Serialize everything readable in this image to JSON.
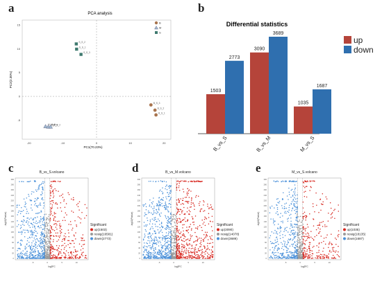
{
  "panels": {
    "a": {
      "letter": "a",
      "chart_data": {
        "type": "scatter",
        "title": "PCA analysis",
        "xlabel": "PC1(70.23%)",
        "ylabel": "PC2(2.30%)",
        "xlim": [
          -22,
          22
        ],
        "ylim": [
          -9,
          16
        ],
        "xticks": [
          "-20",
          "-10",
          "0",
          "10",
          "20"
        ],
        "yticks": [
          "15",
          "10",
          "5",
          "0",
          "-5"
        ],
        "legend": [
          "B",
          "M",
          "S"
        ],
        "legend_position": "top-right",
        "colors": {
          "B": "#a8744e",
          "M": "#9fb8d0",
          "S": "#3f7a6f"
        },
        "points": [
          {
            "group": "S",
            "x": -6.0,
            "y": 11.0,
            "label": "S_S_2"
          },
          {
            "group": "S",
            "x": -5.9,
            "y": 9.9,
            "label": "S_S_1"
          },
          {
            "group": "S",
            "x": -4.6,
            "y": 8.8,
            "label": "S_S_3"
          },
          {
            "group": "B",
            "x": 16.1,
            "y": -1.8,
            "label": "B_S_3"
          },
          {
            "group": "B",
            "x": 17.3,
            "y": -2.9,
            "label": "B_S_2"
          },
          {
            "group": "B",
            "x": 17.6,
            "y": -3.9,
            "label": "B_S_1"
          },
          {
            "group": "M",
            "x": -15.1,
            "y": -6.3,
            "label": "M_M_3"
          },
          {
            "group": "M",
            "x": -14.3,
            "y": -6.4,
            "label": "M_M_1"
          },
          {
            "group": "M",
            "x": -13.6,
            "y": -6.4,
            "label": "M_M_2"
          }
        ]
      }
    },
    "b": {
      "letter": "b",
      "chart_data": {
        "type": "bar",
        "title": "Differential statistics",
        "categories": [
          "B_vs_S",
          "B_vs_M",
          "M_vs_S"
        ],
        "series": [
          {
            "name": "up",
            "values": [
              1503,
              3090,
              1035
            ],
            "color": "#b5443a"
          },
          {
            "name": "down",
            "values": [
              2773,
              3689,
              1687
            ],
            "color": "#2f6faf"
          }
        ],
        "ylim": [
          0,
          3900
        ],
        "legend_position": "right"
      }
    },
    "c": {
      "letter": "c",
      "chart_data": {
        "type": "scatter",
        "title": "B_vs_S.volcano",
        "xlabel": "log2FC",
        "ylabel": "-log10(Pvalue)",
        "xticks": [
          "-5",
          "0",
          "5",
          "10"
        ],
        "yticks": [
          "300",
          "280",
          "260",
          "240",
          "220",
          "200",
          "180",
          "160",
          "140",
          "120",
          "100",
          "80",
          "60",
          "40",
          "20",
          "0"
        ],
        "legend_title": "Significant",
        "legend": [
          {
            "label": "up(1503)",
            "color": "#d7261e"
          },
          {
            "label": "nosig(16581)",
            "color": "#9a9a9a"
          },
          {
            "label": "down(2773)",
            "color": "#4a90d9"
          }
        ]
      }
    },
    "d": {
      "letter": "d",
      "chart_data": {
        "type": "scatter",
        "title": "B_vs_M.volcano",
        "xlabel": "log2FC",
        "ylabel": "-log10(Pvalue)",
        "xticks": [
          "-5",
          "0",
          "5",
          "10"
        ],
        "yticks": [
          "300",
          "280",
          "260",
          "240",
          "220",
          "200",
          "180",
          "160",
          "140",
          "120",
          "100",
          "80",
          "60",
          "40",
          "20",
          "0"
        ],
        "legend_title": "Significant",
        "legend": [
          {
            "label": "up(3090)",
            "color": "#d7261e"
          },
          {
            "label": "nosig(14078)",
            "color": "#9a9a9a"
          },
          {
            "label": "down(3689)",
            "color": "#4a90d9"
          }
        ]
      }
    },
    "e": {
      "letter": "e",
      "chart_data": {
        "type": "scatter",
        "title": "M_vs_S.volcano",
        "xlabel": "log2FC",
        "ylabel": "-log10(Pvalue)",
        "xticks": [
          "-5",
          "0",
          "5",
          "10"
        ],
        "yticks": [
          "300",
          "280",
          "260",
          "240",
          "220",
          "200",
          "180",
          "160",
          "140",
          "120",
          "100",
          "80",
          "60",
          "40",
          "20",
          "0"
        ],
        "legend_title": "Significant",
        "legend": [
          {
            "label": "up(1035)",
            "color": "#d7261e"
          },
          {
            "label": "nosig(18135)",
            "color": "#9a9a9a"
          },
          {
            "label": "down(1687)",
            "color": "#4a90d9"
          }
        ]
      }
    }
  }
}
